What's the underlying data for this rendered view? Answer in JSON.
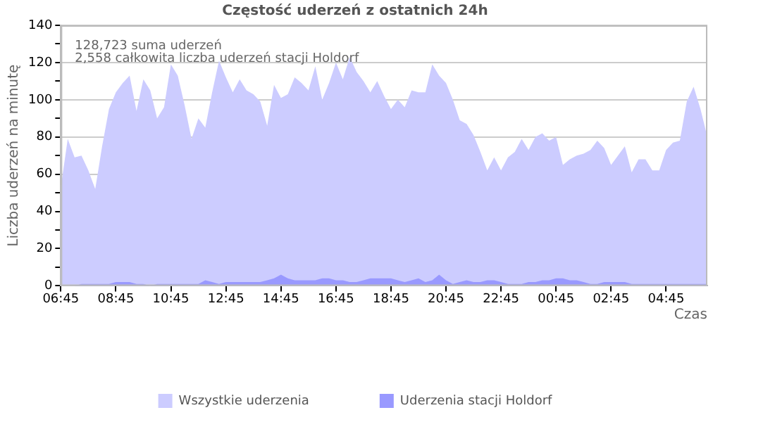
{
  "chart_data": {
    "type": "area",
    "title": "Częstość uderzeń z ostatnich 24h",
    "xlabel": "Czas",
    "ylabel": "Liczba uderzeń na minutę",
    "annotations": [
      "128,723 suma uderzeń",
      "2,558 całkowita liczba uderzeń stacji Holdorf"
    ],
    "categories": [
      "06:45",
      null,
      null,
      null,
      null,
      null,
      null,
      null,
      "08:45",
      null,
      null,
      null,
      null,
      null,
      null,
      null,
      "10:45",
      null,
      null,
      null,
      null,
      null,
      null,
      null,
      "12:45",
      null,
      null,
      null,
      null,
      null,
      null,
      null,
      "14:45",
      null,
      null,
      null,
      null,
      null,
      null,
      null,
      "16:45",
      null,
      null,
      null,
      null,
      null,
      null,
      null,
      "18:45",
      null,
      null,
      null,
      null,
      null,
      null,
      null,
      "20:45",
      null,
      null,
      null,
      null,
      null,
      null,
      null,
      "22:45",
      null,
      null,
      null,
      null,
      null,
      null,
      null,
      "00:45",
      null,
      null,
      null,
      null,
      null,
      null,
      null,
      "02:45",
      null,
      null,
      null,
      null,
      null,
      null,
      null,
      "04:45",
      null,
      null,
      null,
      null,
      null,
      null
    ],
    "ylim": [
      0,
      140
    ],
    "yticks": [
      0,
      {
        "value": 10,
        "label": null
      },
      20,
      {
        "value": 30,
        "label": null
      },
      40,
      {
        "value": 50,
        "label": null
      },
      60,
      {
        "value": 70,
        "label": null
      },
      80,
      {
        "value": 90,
        "label": null
      },
      100,
      {
        "value": 110,
        "label": null
      },
      120,
      {
        "value": 130,
        "label": null
      },
      140
    ],
    "grid": "y",
    "legend": "bottom",
    "series": [
      {
        "name": "Wszystkie uderzenia",
        "color": "#ccccff",
        "values": [
          53,
          79,
          69,
          70,
          62,
          52,
          75,
          95,
          104,
          109,
          113,
          94,
          111,
          105,
          90,
          96,
          119,
          113,
          97,
          79,
          90,
          85,
          104,
          121,
          112,
          104,
          111,
          105,
          103,
          99,
          86,
          108,
          101,
          103,
          112,
          109,
          105,
          118,
          100,
          109,
          120,
          111,
          123,
          115,
          110,
          104,
          110,
          102,
          95,
          100,
          96,
          105,
          104,
          104,
          119,
          113,
          109,
          100,
          89,
          87,
          81,
          72,
          62,
          69,
          62,
          69,
          72,
          79,
          73,
          80,
          82,
          78,
          80,
          65,
          68,
          70,
          71,
          73,
          78,
          74,
          65,
          70,
          75,
          61,
          68,
          68,
          62,
          62,
          73,
          77,
          78,
          99,
          107,
          95,
          80
        ]
      },
      {
        "name": "Uderzenia stacji Holdorf",
        "color": "#9999ff",
        "values": [
          0,
          0,
          0,
          1,
          1,
          1,
          1,
          1,
          2,
          2,
          2,
          1,
          1,
          0,
          1,
          1,
          1,
          1,
          1,
          1,
          1,
          3,
          2,
          1,
          2,
          2,
          2,
          2,
          2,
          2,
          3,
          4,
          6,
          4,
          3,
          3,
          3,
          3,
          4,
          4,
          3,
          3,
          2,
          2,
          3,
          4,
          4,
          4,
          4,
          3,
          2,
          3,
          4,
          2,
          3,
          6,
          3,
          1,
          2,
          3,
          2,
          2,
          3,
          3,
          2,
          1,
          1,
          1,
          2,
          2,
          3,
          3,
          4,
          4,
          3,
          3,
          2,
          1,
          1,
          2,
          2,
          2,
          2,
          1,
          1,
          1,
          1,
          1,
          1,
          1,
          1,
          1,
          1,
          1,
          1
        ]
      }
    ]
  }
}
